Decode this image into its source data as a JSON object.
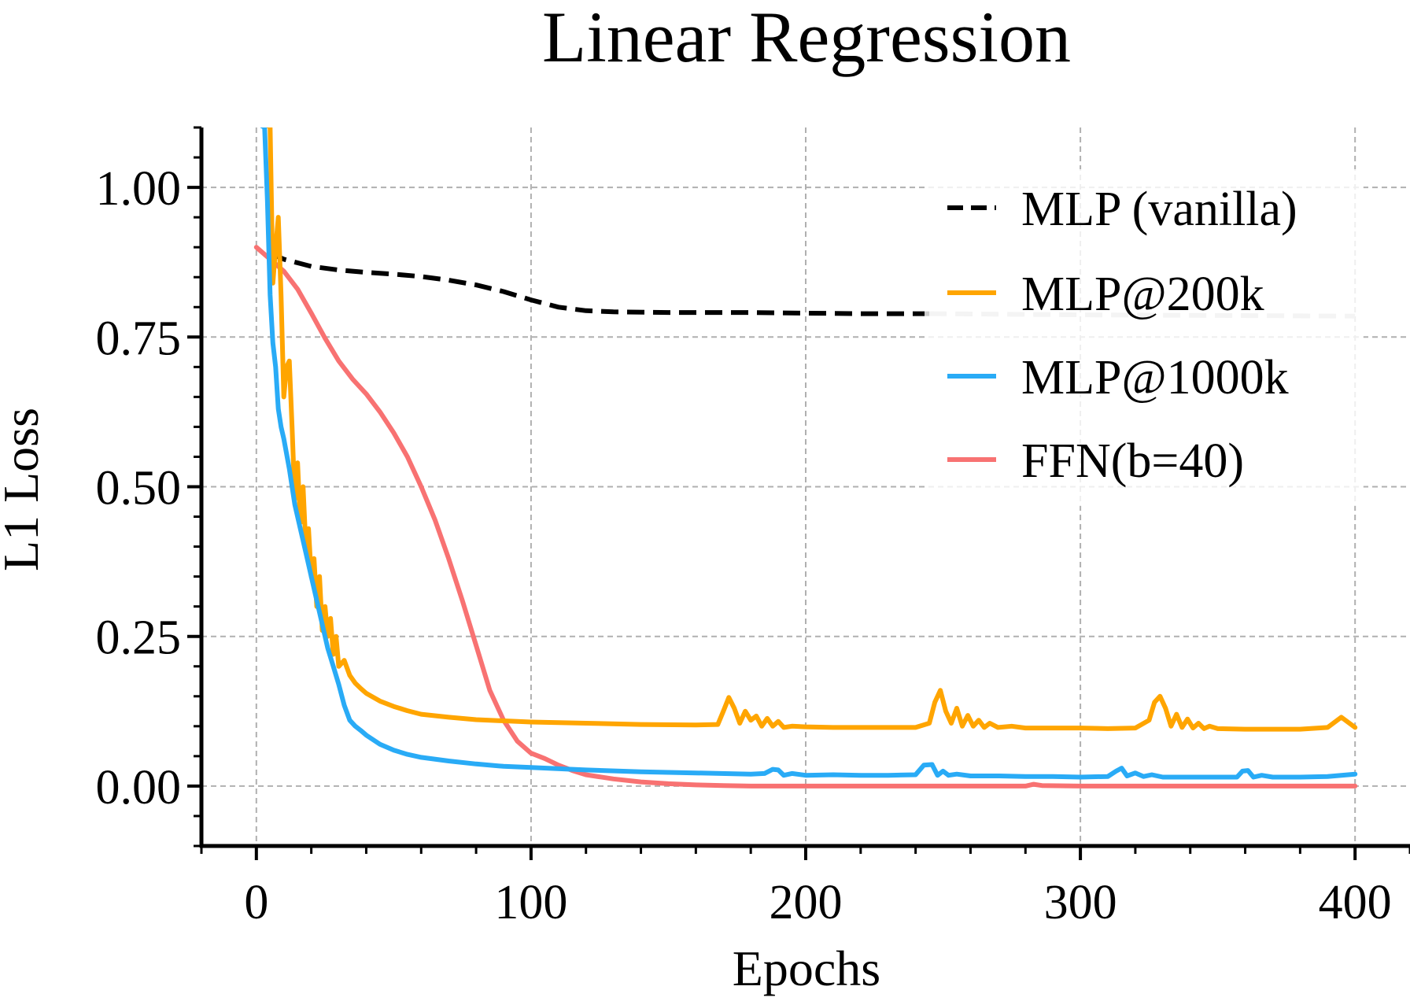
{
  "chart_data": {
    "type": "line",
    "title": "Linear Regression",
    "xlabel": "Epochs",
    "ylabel": "L1 Loss",
    "xlim": [
      -20,
      420
    ],
    "ylim": [
      -0.1,
      1.1
    ],
    "xticks": [
      0,
      100,
      200,
      300,
      400
    ],
    "xtick_labels": [
      "0",
      "100",
      "200",
      "300",
      "400"
    ],
    "yticks": [
      0.0,
      0.25,
      0.5,
      0.75,
      1.0
    ],
    "ytick_labels": [
      "0.00",
      "0.25",
      "0.50",
      "0.75",
      "1.00"
    ],
    "grid": true,
    "legend_position": "top-right",
    "series": [
      {
        "name": "MLP (vanilla)",
        "color": "#000000",
        "style": "dashed",
        "x": [
          5,
          10,
          20,
          30,
          40,
          50,
          60,
          70,
          80,
          90,
          100,
          110,
          120,
          130,
          150,
          180,
          200,
          220,
          245
        ],
        "y": [
          0.89,
          0.88,
          0.868,
          0.862,
          0.858,
          0.855,
          0.851,
          0.845,
          0.837,
          0.826,
          0.812,
          0.8,
          0.794,
          0.792,
          0.791,
          0.791,
          0.79,
          0.789,
          0.789
        ]
      },
      {
        "name": "MLP (vanilla) extension",
        "color": "#c8c8c8",
        "style": "dashed",
        "x": [
          245,
          300,
          350,
          400
        ],
        "y": [
          0.789,
          0.787,
          0.786,
          0.785
        ]
      },
      {
        "name": "MLP@200k",
        "color": "#FFA500",
        "style": "solid",
        "x": [
          4,
          5,
          6,
          7,
          8,
          9,
          10,
          11,
          12,
          13,
          14,
          15,
          16,
          17,
          18,
          19,
          20,
          21,
          22,
          23,
          24,
          25,
          26,
          27,
          28,
          29,
          30,
          32,
          34,
          36,
          38,
          40,
          45,
          50,
          55,
          60,
          70,
          80,
          100,
          120,
          140,
          160,
          168,
          170,
          172,
          174,
          176,
          178,
          180,
          182,
          184,
          186,
          188,
          190,
          192,
          195,
          200,
          210,
          220,
          230,
          240,
          245,
          247,
          249,
          251,
          253,
          255,
          257,
          259,
          261,
          263,
          265,
          267,
          270,
          275,
          280,
          290,
          300,
          310,
          320,
          325,
          327,
          329,
          331,
          333,
          335,
          337,
          339,
          341,
          343,
          345,
          347,
          350,
          360,
          370,
          380,
          390,
          395,
          400
        ],
        "y": [
          1.2,
          1.15,
          0.84,
          0.9,
          0.95,
          0.82,
          0.65,
          0.7,
          0.71,
          0.6,
          0.48,
          0.54,
          0.44,
          0.5,
          0.4,
          0.43,
          0.35,
          0.38,
          0.3,
          0.35,
          0.26,
          0.3,
          0.25,
          0.28,
          0.22,
          0.25,
          0.2,
          0.21,
          0.185,
          0.172,
          0.163,
          0.155,
          0.142,
          0.133,
          0.126,
          0.12,
          0.115,
          0.111,
          0.107,
          0.105,
          0.103,
          0.102,
          0.103,
          0.125,
          0.148,
          0.13,
          0.105,
          0.125,
          0.11,
          0.117,
          0.1,
          0.113,
          0.1,
          0.108,
          0.098,
          0.1,
          0.099,
          0.098,
          0.098,
          0.098,
          0.098,
          0.105,
          0.14,
          0.16,
          0.125,
          0.105,
          0.13,
          0.1,
          0.118,
          0.1,
          0.11,
          0.098,
          0.105,
          0.098,
          0.1,
          0.097,
          0.097,
          0.097,
          0.096,
          0.097,
          0.11,
          0.14,
          0.15,
          0.13,
          0.1,
          0.12,
          0.098,
          0.112,
          0.097,
          0.105,
          0.096,
          0.1,
          0.096,
          0.095,
          0.095,
          0.095,
          0.098,
          0.115,
          0.098
        ]
      },
      {
        "name": "MLP@1000k",
        "color": "#29ABF6",
        "style": "solid",
        "x": [
          2,
          3,
          4,
          5,
          6,
          7,
          8,
          9,
          10,
          12,
          14,
          16,
          18,
          20,
          22,
          24,
          26,
          28,
          30,
          32,
          34,
          36,
          38,
          40,
          45,
          50,
          55,
          60,
          70,
          80,
          90,
          100,
          120,
          140,
          160,
          180,
          185,
          188,
          190,
          192,
          195,
          200,
          210,
          220,
          230,
          240,
          243,
          246,
          248,
          250,
          252,
          255,
          260,
          270,
          280,
          290,
          300,
          310,
          313,
          315,
          317,
          320,
          323,
          326,
          330,
          340,
          350,
          357,
          359,
          361,
          363,
          366,
          370,
          380,
          390,
          400
        ],
        "y": [
          1.2,
          1.1,
          0.98,
          0.82,
          0.74,
          0.7,
          0.63,
          0.6,
          0.58,
          0.53,
          0.47,
          0.43,
          0.39,
          0.35,
          0.31,
          0.27,
          0.23,
          0.2,
          0.17,
          0.135,
          0.11,
          0.1,
          0.093,
          0.085,
          0.07,
          0.06,
          0.053,
          0.048,
          0.042,
          0.037,
          0.033,
          0.031,
          0.027,
          0.024,
          0.022,
          0.02,
          0.021,
          0.028,
          0.027,
          0.018,
          0.021,
          0.018,
          0.019,
          0.018,
          0.018,
          0.019,
          0.035,
          0.036,
          0.018,
          0.025,
          0.018,
          0.02,
          0.017,
          0.017,
          0.016,
          0.016,
          0.015,
          0.016,
          0.025,
          0.03,
          0.017,
          0.022,
          0.016,
          0.019,
          0.015,
          0.015,
          0.015,
          0.015,
          0.025,
          0.026,
          0.015,
          0.018,
          0.015,
          0.015,
          0.016,
          0.02
        ]
      },
      {
        "name": "FFN(b=40)",
        "color": "#F87272",
        "style": "solid",
        "x": [
          0,
          5,
          10,
          15,
          20,
          25,
          30,
          35,
          40,
          45,
          50,
          55,
          60,
          65,
          70,
          75,
          80,
          85,
          90,
          95,
          100,
          105,
          110,
          115,
          120,
          130,
          140,
          150,
          160,
          170,
          180,
          200,
          250,
          280,
          283,
          286,
          300,
          350,
          400
        ],
        "y": [
          0.9,
          0.88,
          0.86,
          0.83,
          0.79,
          0.748,
          0.71,
          0.68,
          0.655,
          0.625,
          0.59,
          0.55,
          0.5,
          0.445,
          0.38,
          0.31,
          0.235,
          0.16,
          0.11,
          0.075,
          0.055,
          0.046,
          0.035,
          0.026,
          0.019,
          0.012,
          0.007,
          0.004,
          0.002,
          0.001,
          0.0,
          0.0,
          0.0,
          0.0,
          0.003,
          0.001,
          0.0,
          0.0,
          0.0
        ]
      }
    ],
    "legend": [
      {
        "label": "MLP (vanilla)",
        "color": "#000000",
        "style": "dashed"
      },
      {
        "label": "MLP@200k",
        "color": "#FFA500",
        "style": "solid"
      },
      {
        "label": "MLP@1000k",
        "color": "#29ABF6",
        "style": "solid"
      },
      {
        "label": "FFN(b=40)",
        "color": "#F87272",
        "style": "solid"
      }
    ]
  }
}
